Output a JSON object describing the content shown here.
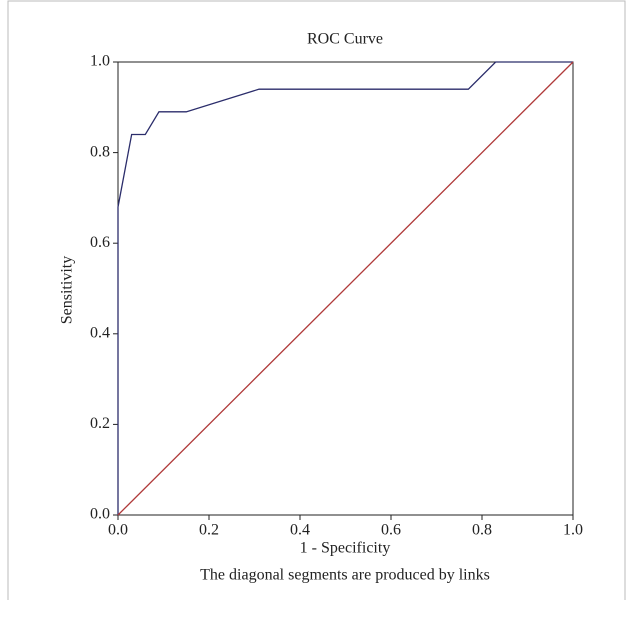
{
  "chart_data": {
    "type": "line",
    "title": "ROC Curve",
    "x_label": "1 - Specificity",
    "y_label": "Sensitivity",
    "note": "The diagonal segments are produced by links",
    "series": [
      {
        "color": "#2b2d6b",
        "x": [
          0,
          0,
          0.03,
          0.06,
          0.09,
          0.15,
          0.31,
          0.77,
          0.83,
          1.0
        ],
        "values": [
          0,
          0.68,
          0.84,
          0.84,
          0.89,
          0.89,
          0.94,
          0.94,
          1.0,
          1.0
        ]
      },
      {
        "color": "#b03a3a",
        "x": [
          0,
          1.0
        ],
        "values": [
          0,
          1.0
        ]
      }
    ],
    "xlim": [
      0,
      1
    ],
    "ylim": [
      0,
      1
    ],
    "xticks": [
      {
        "value": 0,
        "label": "0.0"
      },
      0.2,
      0.4,
      0.6,
      0.8,
      {
        "value": 1,
        "label": "1.0"
      }
    ],
    "yticks": [
      {
        "value": 0,
        "label": "0.0"
      },
      0.2,
      0.4,
      0.6,
      0.8,
      {
        "value": 1,
        "label": "1.0"
      }
    ]
  }
}
